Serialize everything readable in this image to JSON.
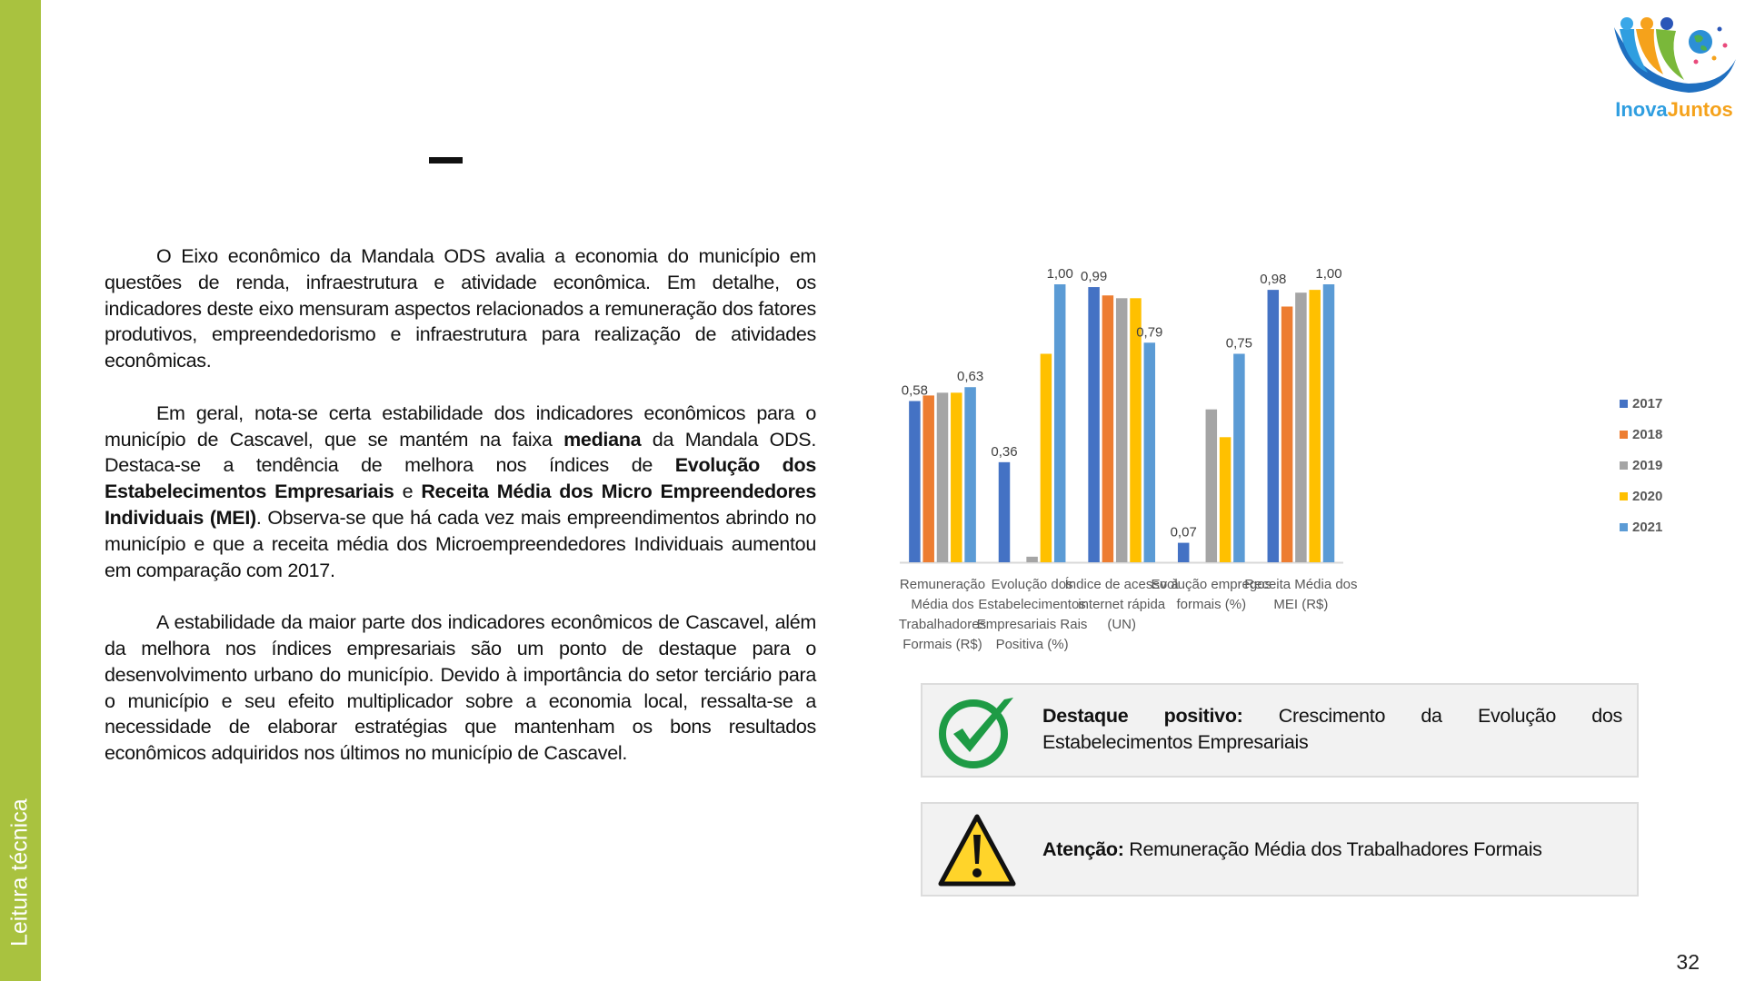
{
  "sidebar": {
    "label": "Leitura técnica",
    "color": "#A9C23F"
  },
  "header": {
    "title": "–"
  },
  "logo": {
    "text": "InovaJuntos"
  },
  "body": {
    "p1": "O Eixo econômico da Mandala ODS avalia a economia do município em questões de renda, infraestrutura e atividade econômica. Em detalhe, os indicadores deste eixo mensuram aspectos relacionados a remuneração dos fatores produtivos, empreendedorismo e infraestrutura para realização de atividades econômicas.",
    "p2_a": "Em geral, nota-se certa estabilidade dos indicadores econômicos para o município de Cascavel, que se mantém na faixa ",
    "p2_b": "mediana",
    "p2_c": " da Mandala ODS. Destaca-se a tendência de melhora nos índices de ",
    "p2_d": "Evolução dos Estabelecimentos Empresariais",
    "p2_e": " e ",
    "p2_f": "Receita Média dos Micro Empreendedores Individuais (MEI)",
    "p2_g": ". Observa-se que há cada vez mais empreendimentos abrindo no município e que a receita média dos Microempreendedores Individuais aumentou em comparação com 2017.",
    "p3": "A estabilidade da maior parte dos indicadores econômicos de Cascavel, além da melhora nos índices empresariais são um ponto de destaque para o desenvolvimento urbano do município. Devido à importância do setor terciário para o município e seu efeito multiplicador sobre a economia local, ressalta-se a necessidade de elaborar estratégias que mantenham os bons resultados econômicos adquiridos nos últimos no município de Cascavel."
  },
  "chart_data": {
    "type": "bar",
    "categories": [
      [
        "Remuneração",
        "Média dos",
        "Trabalhadores",
        "Formais (R$)"
      ],
      [
        "Evolução dos",
        "Estabelecimentos",
        "Empresariais Rais",
        "Positiva (%)"
      ],
      [
        "Índice de acesso à",
        "internet rápida",
        "(UN)"
      ],
      [
        "Evolução empregos",
        "formais (%)"
      ],
      [
        "Receita Média dos",
        "MEI (R$)"
      ]
    ],
    "series": [
      {
        "name": "2017",
        "color": "#4472C4",
        "values": [
          0.58,
          0.36,
          0.99,
          0.07,
          0.98
        ],
        "labels_shown": true
      },
      {
        "name": "2018",
        "color": "#ED7D31",
        "values": [
          0.6,
          null,
          0.96,
          null,
          0.92
        ],
        "labels_shown": false
      },
      {
        "name": "2019",
        "color": "#A5A5A5",
        "values": [
          0.61,
          0.02,
          0.95,
          0.55,
          0.97
        ],
        "labels_shown": false
      },
      {
        "name": "2020",
        "color": "#FFC000",
        "values": [
          0.61,
          0.75,
          0.95,
          0.45,
          0.98
        ],
        "labels_shown": false
      },
      {
        "name": "2021",
        "color": "#5B9BD5",
        "values": [
          0.63,
          1.0,
          0.79,
          0.75,
          1.0
        ],
        "labels_shown": true
      }
    ],
    "ylim": [
      0,
      1
    ],
    "grid": false,
    "legend": "right",
    "decimal_separator": ","
  },
  "highlights": {
    "positive": {
      "label": "Destaque positivo:",
      "text": " Crescimento da Evolução dos Estabelecimentos Empresariais",
      "icon": "check-circle-icon",
      "color": "#1E9B45"
    },
    "warning": {
      "label": "Atenção:",
      "text": " Remuneração Média dos Trabalhadores Formais",
      "icon": "warning-triangle-icon",
      "color": "#FFD42A"
    }
  },
  "page_number": "32"
}
